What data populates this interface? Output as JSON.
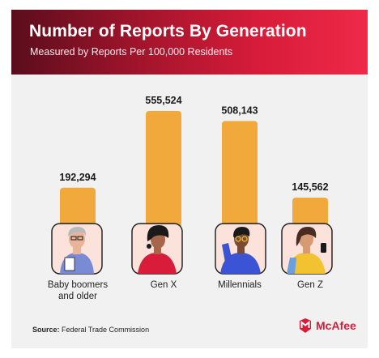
{
  "chart_data": {
    "type": "bar",
    "title": "Number of Reports By Generation",
    "subtitle": "Measured by Reports Per 100,000 Residents",
    "categories": [
      "Baby boomers and older",
      "Gen X",
      "Millennials",
      "Gen Z"
    ],
    "category_lines": [
      [
        "Baby boomers",
        "and older"
      ],
      [
        "Gen X"
      ],
      [
        "Millennials"
      ],
      [
        "Gen Z"
      ]
    ],
    "values": [
      192294,
      555524,
      508143,
      145562
    ],
    "value_labels": [
      "192,294",
      "555,524",
      "508,143",
      "145,562"
    ],
    "bar_color": "#f2a93b",
    "ylim": [
      0,
      600000
    ],
    "grid": false,
    "legend": "none"
  },
  "source": {
    "label": "Source:",
    "text": "Federal Trade Commission"
  },
  "brand": {
    "name": "McAfee",
    "color": "#d81c3a"
  },
  "icons": [
    "baby-boomer-avatar-icon",
    "gen-x-avatar-icon",
    "millennial-avatar-icon",
    "gen-z-avatar-icon",
    "mcafee-shield-icon"
  ]
}
